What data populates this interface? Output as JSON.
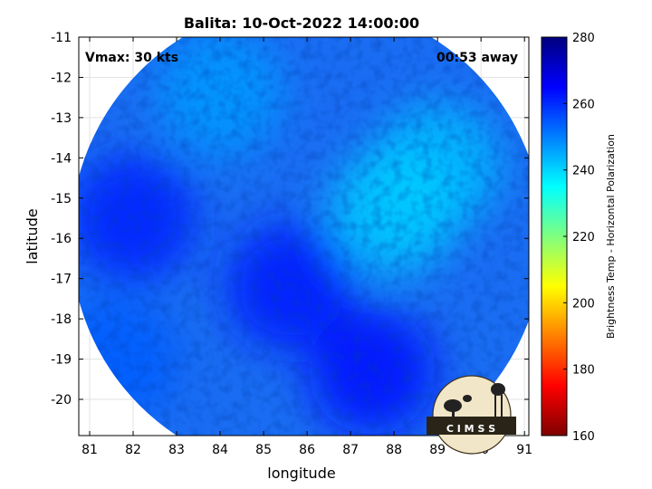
{
  "title": "Balita: 10-Oct-2022 14:00:00",
  "annotations": {
    "vmax": "Vmax: 30 kts",
    "away": "00:53 away"
  },
  "logo_text": "C I M S S",
  "chart_data": {
    "type": "heatmap",
    "title": "Balita: 10-Oct-2022 14:00:00",
    "xlabel": "longitude",
    "ylabel": "latitude",
    "xlim": [
      80.75,
      91.1
    ],
    "ylim": [
      -20.9,
      -11.0
    ],
    "x_ticks": [
      81,
      82,
      83,
      84,
      85,
      86,
      87,
      88,
      89,
      90,
      91
    ],
    "y_ticks": [
      -11,
      -12,
      -13,
      -14,
      -15,
      -16,
      -17,
      -18,
      -19,
      -20
    ],
    "grid": true,
    "data_footprint": {
      "shape": "circle",
      "center_lon": 86.0,
      "center_lat": -16.0,
      "radius_deg": 5.65
    },
    "colorbar": {
      "label": "Brightness Temp - Horizontal Polarization",
      "range": [
        160,
        280
      ],
      "ticks": [
        280,
        260,
        240,
        220,
        200,
        180,
        160
      ],
      "colormap": "jet"
    },
    "features": [
      {
        "lon": 85.6,
        "lat": -17.2,
        "temp": 262,
        "desc": "center"
      },
      {
        "lon": 89.0,
        "lat": -14.2,
        "temp": 243
      },
      {
        "lon": 88.0,
        "lat": -15.3,
        "temp": 241
      },
      {
        "lon": 82.0,
        "lat": -15.5,
        "temp": 261
      },
      {
        "lon": 87.5,
        "lat": -19.3,
        "temp": 263
      },
      {
        "lon": 84.0,
        "lat": -12.4,
        "temp": 247
      },
      {
        "lon": 81.6,
        "lat": -19.0,
        "temp": 254
      }
    ]
  }
}
